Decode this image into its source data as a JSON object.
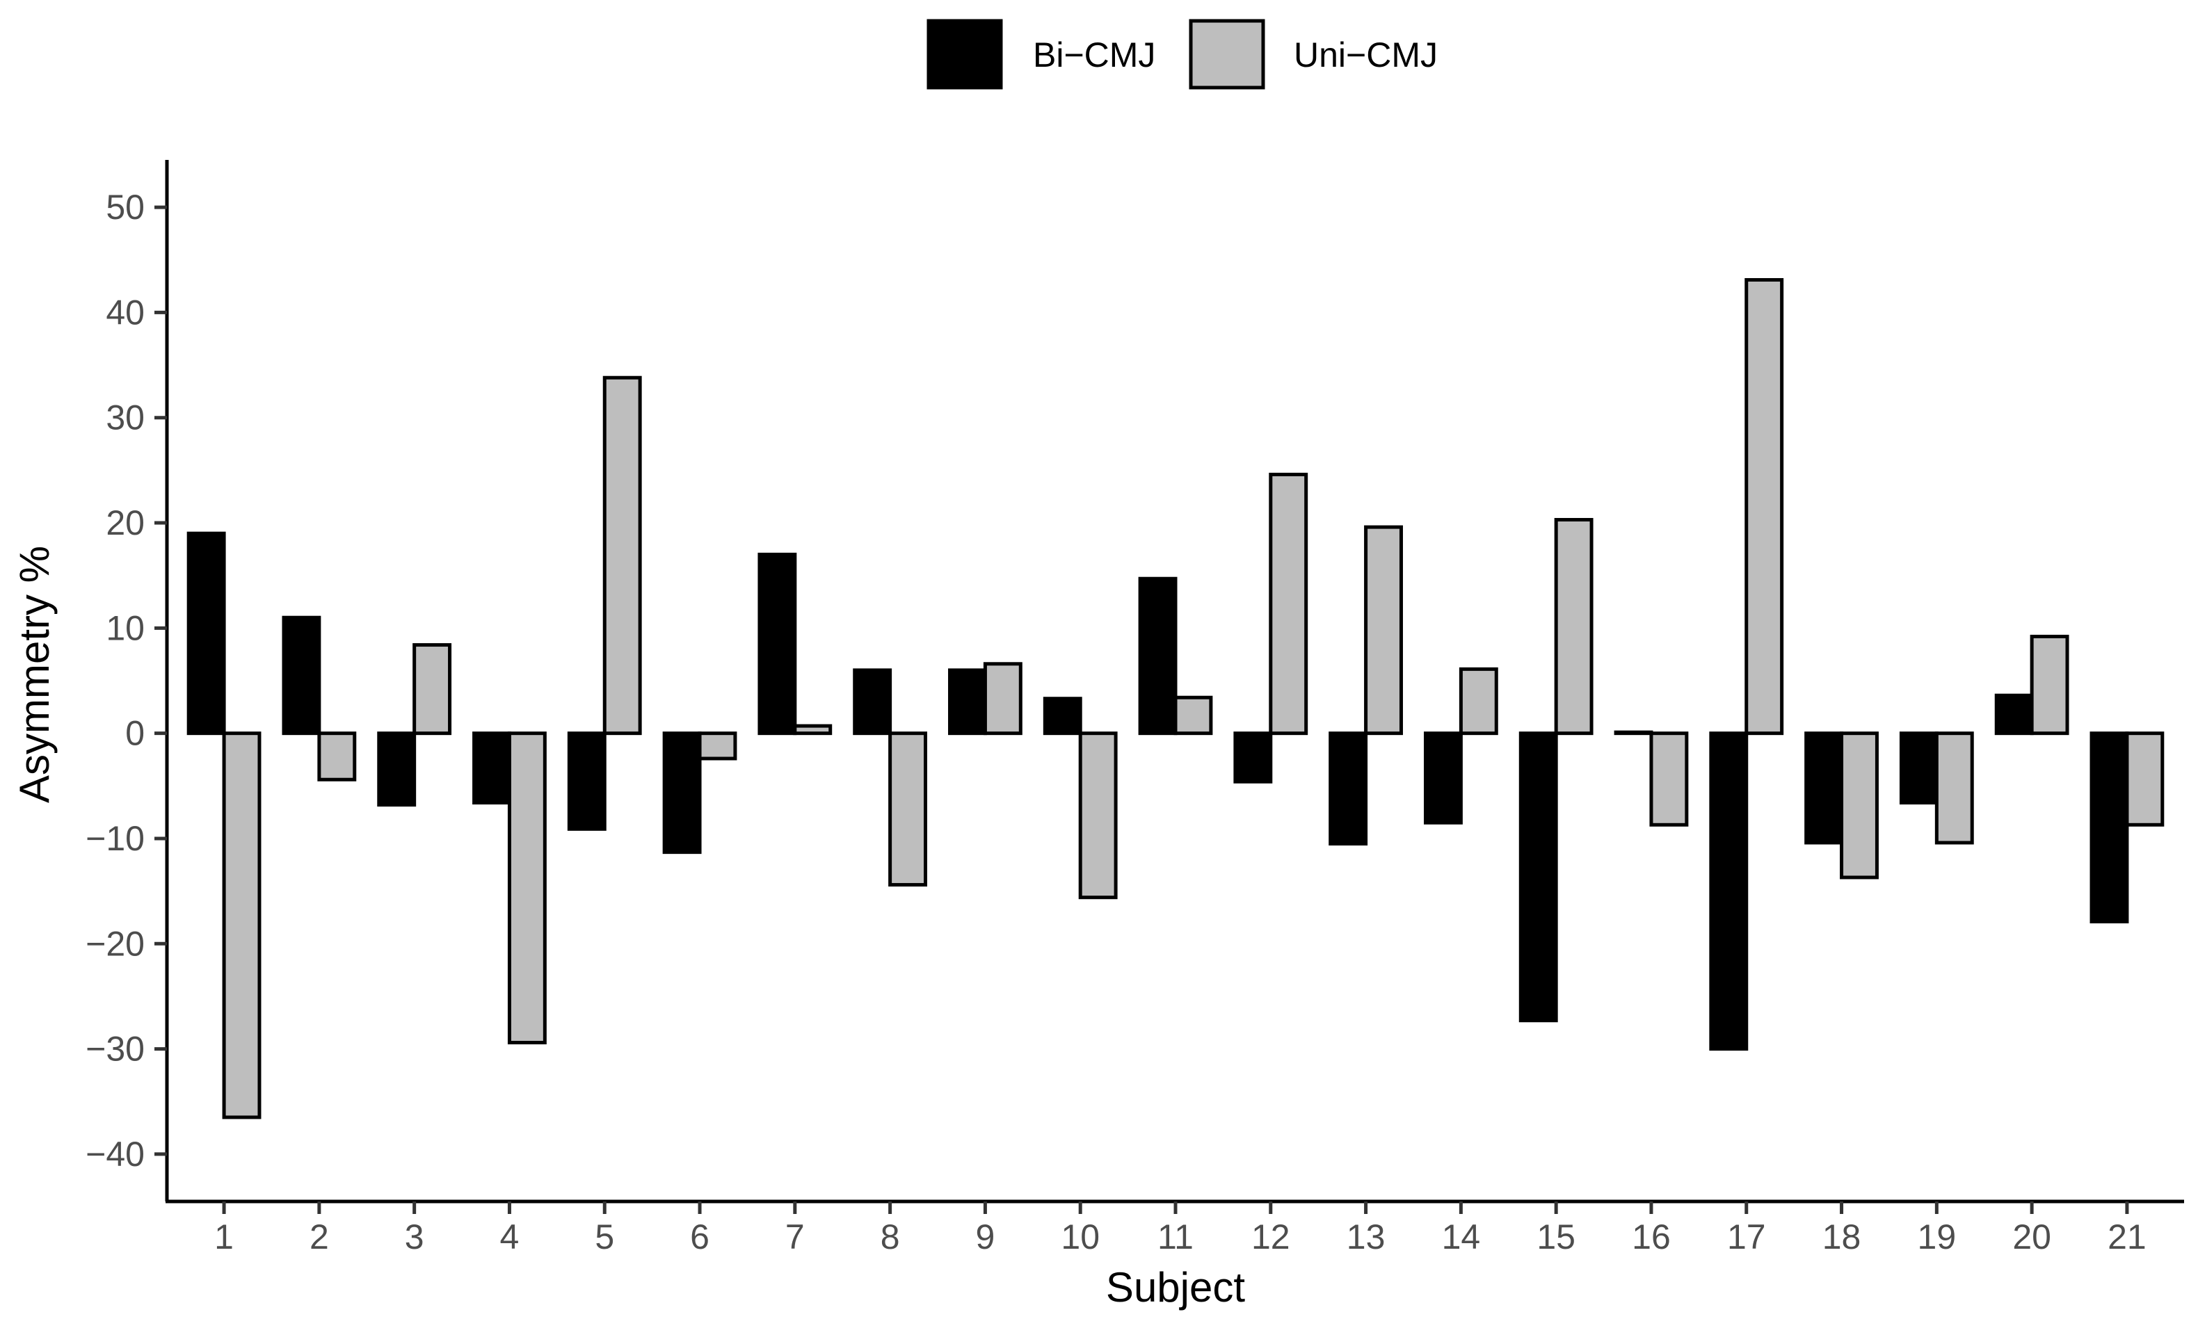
{
  "chart_data": {
    "type": "bar",
    "title": "",
    "xlabel": "Subject",
    "ylabel": "Asymmetry %",
    "categories": [
      "1",
      "2",
      "3",
      "4",
      "5",
      "6",
      "7",
      "8",
      "9",
      "10",
      "11",
      "12",
      "13",
      "14",
      "15",
      "16",
      "17",
      "18",
      "19",
      "20",
      "21"
    ],
    "series": [
      {
        "name": "Bi−CMJ",
        "color": "#000000",
        "values": [
          19.0,
          11.0,
          -6.8,
          -6.6,
          -9.1,
          -11.3,
          17.0,
          6.0,
          6.0,
          3.3,
          14.7,
          -4.6,
          -10.5,
          -8.5,
          -27.3,
          0.1,
          -30.0,
          -10.4,
          -6.6,
          3.6,
          -17.9
        ]
      },
      {
        "name": "Uni−CMJ",
        "color": "#bebebe",
        "values": [
          -36.5,
          -4.4,
          8.4,
          -29.4,
          33.8,
          -2.4,
          0.7,
          -14.4,
          6.6,
          -15.6,
          3.4,
          24.6,
          19.6,
          6.1,
          20.3,
          -8.7,
          43.1,
          -13.7,
          -10.4,
          9.2,
          -8.7
        ]
      }
    ],
    "ylim": [
      -44.5,
      54.5
    ],
    "yticks": [
      -40,
      -30,
      -20,
      -10,
      0,
      10,
      20,
      30,
      40,
      50
    ],
    "grid": false,
    "legend_position": "top"
  }
}
